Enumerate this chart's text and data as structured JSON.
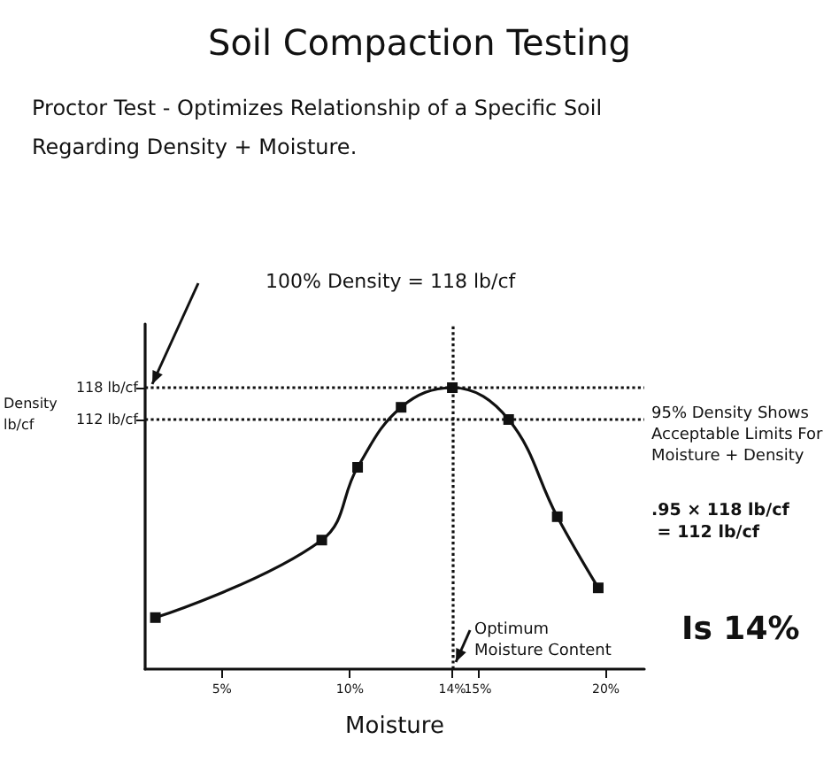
{
  "chart_data": {
    "type": "line",
    "title": "Soil Compaction Testing",
    "subtitle": "Proctor Test - Optimizes Relationship of a Specific Soil Regarding Density + Moisture.",
    "xlabel": "Moisture",
    "ylabel": "Density lb/cf",
    "x": [
      2.4,
      8.9,
      10.3,
      12,
      14,
      16.2,
      18.1,
      19.7
    ],
    "series": [
      {
        "color": "#111111",
        "values": [
          74.7,
          89.3,
          103,
          114.3,
          118,
          112,
          93.7,
          80.3
        ]
      }
    ],
    "xlim": [
      2,
      21.5
    ],
    "xticks": [
      {
        "value": 5,
        "label": "5%"
      },
      {
        "value": 10,
        "label": "10%"
      },
      {
        "value": 14,
        "label": "14%"
      },
      {
        "value": 15,
        "label": "15%"
      },
      {
        "value": 20,
        "label": "20%"
      }
    ],
    "ylim": [
      65,
      130
    ],
    "yticks": [
      {
        "value": 112,
        "label": "112 lb/cf"
      },
      {
        "value": 118,
        "label": "118 lb/cf"
      }
    ],
    "ref_lines": [
      {
        "axis": "y",
        "value": 118,
        "label": null,
        "color": "#111111",
        "line_style": "dotted"
      },
      {
        "axis": "y",
        "value": 112,
        "label": null,
        "color": "#111111",
        "line_style": "dotted"
      },
      {
        "axis": "x",
        "value": 14,
        "label": null,
        "color": "#111111",
        "line_style": "dotted"
      }
    ],
    "annotations": [
      "100% Density = 118 lb/cf",
      "95% Density Shows Acceptable Limits For Moisture + Density",
      ".95 × 118 lb/cf = 112 lb/cf",
      "Optimum Moisture Content",
      "Is 14%"
    ],
    "marker": "square",
    "line_style": "solid",
    "grid": false
  }
}
